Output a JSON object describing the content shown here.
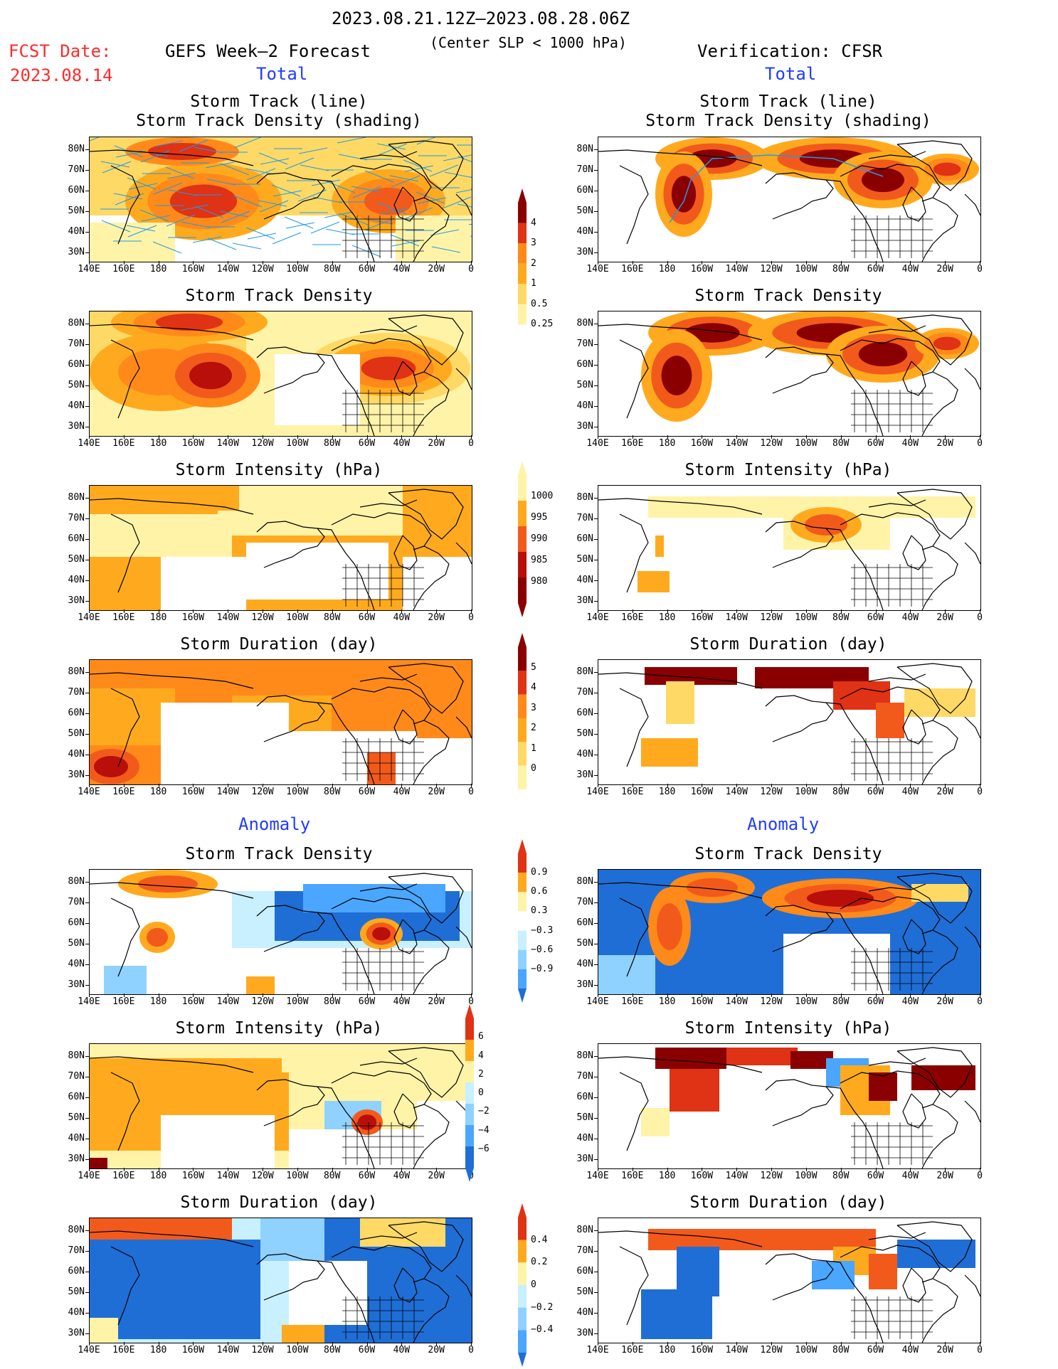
{
  "header": {
    "period": "2023.08.21.12Z—2023.08.28.06Z",
    "criterion": "(Center SLP < 1000 hPa)",
    "fcst_label": "FCST Date:",
    "fcst_date": "2023.08.14",
    "forecast_title": "GEFS Week—2 Forecast",
    "verification_title": "Verification: CFSR",
    "total_label": "Total",
    "anomaly_label": "Anomaly"
  },
  "panel_titles": {
    "track_line": "Storm Track (line)",
    "track_shading": "Storm Track Density (shading)",
    "density": "Storm Track Density",
    "intensity": "Storm Intensity (hPa)",
    "duration": "Storm Duration (day)"
  },
  "axes": {
    "lat_labels": [
      "80N",
      "70N",
      "60N",
      "50N",
      "40N",
      "30N"
    ],
    "lon_labels": [
      "140E",
      "160E",
      "180",
      "160W",
      "140W",
      "120W",
      "100W",
      "80W",
      "60W",
      "40W",
      "20W",
      "0"
    ]
  },
  "colorbars": {
    "density_total": [
      "4",
      "3",
      "2",
      "1",
      "0.5",
      "0.25"
    ],
    "intensity_total": [
      "1000",
      "995",
      "990",
      "985",
      "980"
    ],
    "duration_total": [
      "5",
      "4",
      "3",
      "2",
      "1",
      "0"
    ],
    "density_anom": [
      "0.9",
      "0.6",
      "0.3",
      "−0.3",
      "−0.6",
      "−0.9"
    ],
    "intensity_anom": [
      "6",
      "4",
      "2",
      "0",
      "−2",
      "−4",
      "−6"
    ],
    "duration_anom": [
      "0.4",
      "0.2",
      "0",
      "−0.2",
      "−0.4"
    ]
  },
  "colors": {
    "warm": [
      "#fff3a8",
      "#ffd966",
      "#ffaa1e",
      "#ff8a1a",
      "#f25a1c",
      "#e03214",
      "#b80f0a",
      "#8a0000"
    ],
    "cool": [
      "#c8f0ff",
      "#8fd2ff",
      "#4aa6ff",
      "#1f6ed6"
    ],
    "track_line": "#1e9be6"
  }
}
